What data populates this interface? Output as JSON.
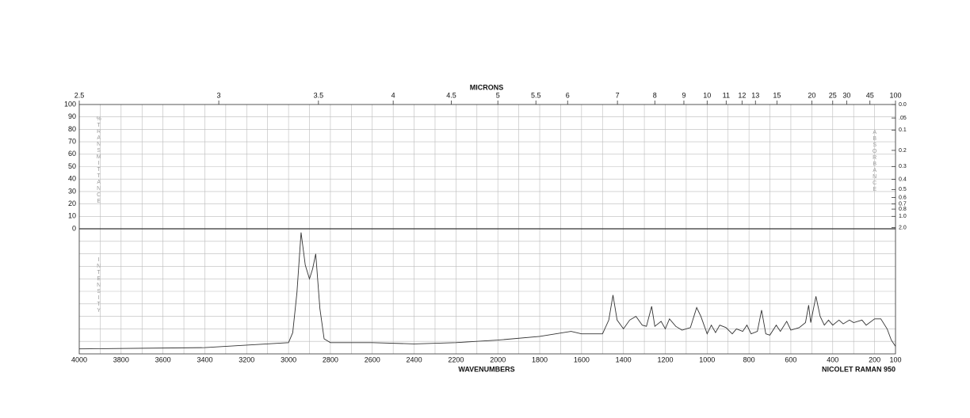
{
  "chart_data": {
    "type": "line",
    "x2label": "MICRONS",
    "xlabel": "WAVENUMBERS",
    "instrument": "NICOLET RAMAN 950",
    "left_label": "%TRANSMITTANCE",
    "right_label": "ABSORBANCE",
    "lower_label": "INTENSITY",
    "xlim": [
      4000,
      100
    ],
    "xticks": [
      4000,
      3800,
      3600,
      3400,
      3200,
      3000,
      2800,
      2600,
      2400,
      2200,
      2000,
      1800,
      1600,
      1400,
      1200,
      1000,
      800,
      600,
      400,
      200,
      100
    ],
    "x2ticks": [
      2.5,
      3,
      3.5,
      4,
      4.5,
      5,
      5.5,
      6,
      7,
      8,
      9,
      10,
      11,
      12,
      13,
      15,
      20,
      25,
      30,
      45,
      100
    ],
    "ylim": [
      0,
      100
    ],
    "yticks": [
      0,
      10,
      20,
      30,
      40,
      50,
      60,
      70,
      80,
      90,
      100
    ],
    "y2ticks": [
      {
        "value": 0,
        "label": "0.0"
      },
      {
        "value": 0.05,
        "label": ".05"
      },
      0.1,
      0.2,
      0.3,
      0.4,
      0.5,
      0.6,
      0.7,
      0.8,
      {
        "value": 1,
        "label": "1.0"
      },
      {
        "value": 2,
        "label": "2.0"
      }
    ],
    "intensity_lim": [
      0,
      100
    ],
    "grid": true,
    "color": "#333333",
    "x": [
      4000,
      3400,
      3200,
      3000,
      2980,
      2960,
      2940,
      2920,
      2900,
      2885,
      2870,
      2850,
      2830,
      2800,
      2600,
      2400,
      2200,
      2000,
      1800,
      1650,
      1600,
      1500,
      1470,
      1450,
      1430,
      1400,
      1370,
      1340,
      1310,
      1290,
      1265,
      1250,
      1220,
      1200,
      1180,
      1150,
      1120,
      1080,
      1050,
      1030,
      1000,
      980,
      960,
      940,
      910,
      880,
      860,
      830,
      810,
      790,
      760,
      740,
      720,
      700,
      670,
      650,
      620,
      600,
      560,
      530,
      515,
      505,
      480,
      460,
      440,
      420,
      400,
      370,
      350,
      320,
      300,
      260,
      240,
      200,
      170,
      140,
      120,
      100
    ],
    "values": [
      4,
      5,
      7,
      9,
      17,
      49,
      97,
      71,
      60,
      68,
      80,
      36,
      12,
      9,
      9,
      8,
      9,
      11,
      14,
      18,
      16,
      16,
      27,
      47,
      27,
      20,
      27,
      30,
      23,
      22,
      38,
      22,
      26,
      20,
      28,
      22,
      19,
      21,
      37,
      30,
      16,
      23,
      17,
      23,
      21,
      16,
      20,
      18,
      23,
      16,
      18,
      35,
      16,
      15,
      23,
      18,
      26,
      19,
      21,
      25,
      39,
      25,
      46,
      30,
      23,
      27,
      23,
      27,
      24,
      27,
      25,
      27,
      23,
      28,
      28,
      20,
      11,
      6
    ]
  }
}
